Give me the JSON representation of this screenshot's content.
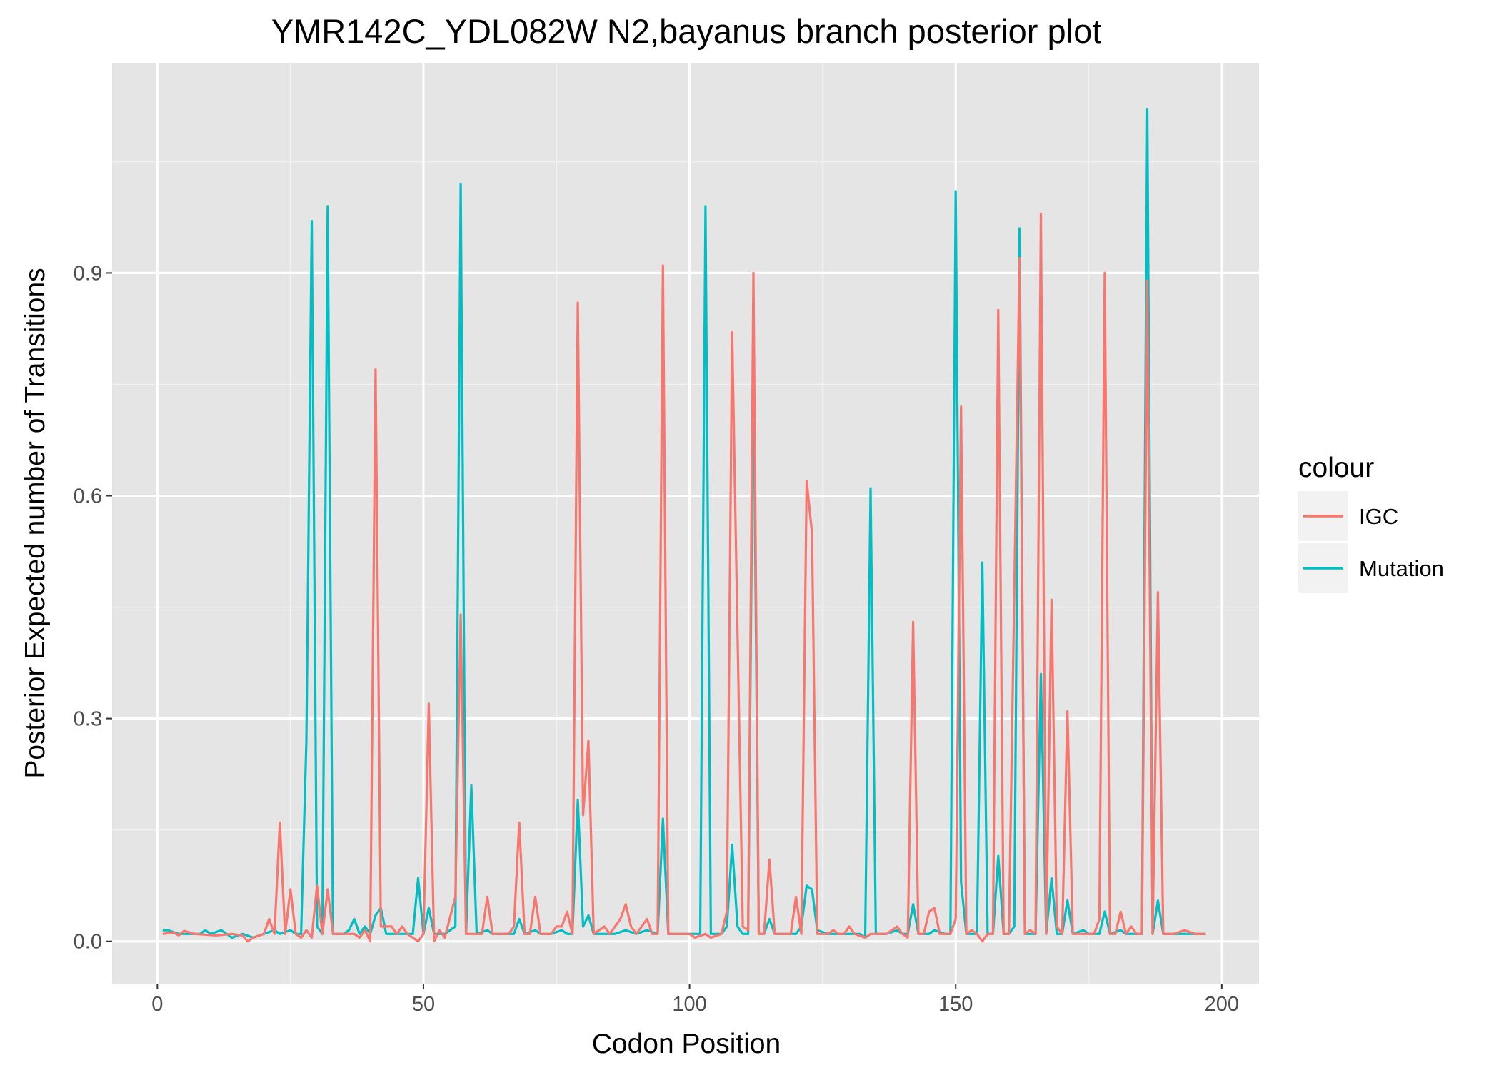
{
  "chart_data": {
    "type": "line",
    "title": "YMR142C_YDL082W N2,bayanus branch posterior plot",
    "xlabel": "Codon Position",
    "ylabel": "Posterior Expected number of Transitions",
    "xlim": [
      -8.5,
      207
    ],
    "ylim": [
      -0.057,
      1.183
    ],
    "x_ticks": [
      0,
      50,
      100,
      150,
      200
    ],
    "x_tick_labels": [
      "0",
      "50",
      "100",
      "150",
      "200"
    ],
    "y_ticks": [
      0.0,
      0.3,
      0.6,
      0.9
    ],
    "y_tick_labels": [
      "0.0",
      "0.3",
      "0.6",
      "0.9"
    ],
    "grid": true,
    "panel_background": "#e5e5e5",
    "legend": {
      "title": "colour",
      "placement": "right"
    },
    "series": [
      {
        "name": "IGC",
        "color": "#f8766d",
        "points": [
          [
            1,
            0.01
          ],
          [
            3,
            0.012
          ],
          [
            4,
            0.008
          ],
          [
            5,
            0.014
          ],
          [
            7,
            0.01
          ],
          [
            9,
            0.009
          ],
          [
            11,
            0.008
          ],
          [
            14,
            0.01
          ],
          [
            16,
            0.008
          ],
          [
            17,
            0.0
          ],
          [
            18,
            0.005
          ],
          [
            20,
            0.01
          ],
          [
            21,
            0.03
          ],
          [
            22,
            0.01
          ],
          [
            23,
            0.16
          ],
          [
            24,
            0.01
          ],
          [
            25,
            0.07
          ],
          [
            26,
            0.01
          ],
          [
            27,
            0.005
          ],
          [
            28,
            0.015
          ],
          [
            29,
            0.005
          ],
          [
            30,
            0.075
          ],
          [
            31,
            0.01
          ],
          [
            32,
            0.07
          ],
          [
            33,
            0.01
          ],
          [
            35,
            0.01
          ],
          [
            37,
            0.01
          ],
          [
            38,
            0.005
          ],
          [
            39,
            0.015
          ],
          [
            40,
            0.0
          ],
          [
            41,
            0.77
          ],
          [
            42,
            0.02
          ],
          [
            43,
            0.02
          ],
          [
            44,
            0.02
          ],
          [
            45,
            0.01
          ],
          [
            46,
            0.02
          ],
          [
            47,
            0.01
          ],
          [
            49,
            0.0
          ],
          [
            50,
            0.01
          ],
          [
            51,
            0.32
          ],
          [
            52,
            0.0
          ],
          [
            53,
            0.015
          ],
          [
            54,
            0.005
          ],
          [
            56,
            0.06
          ],
          [
            57,
            0.44
          ],
          [
            58,
            0.01
          ],
          [
            60,
            0.01
          ],
          [
            61,
            0.01
          ],
          [
            62,
            0.06
          ],
          [
            63,
            0.01
          ],
          [
            66,
            0.01
          ],
          [
            67,
            0.02
          ],
          [
            68,
            0.16
          ],
          [
            69,
            0.01
          ],
          [
            70,
            0.01
          ],
          [
            71,
            0.06
          ],
          [
            72,
            0.01
          ],
          [
            74,
            0.01
          ],
          [
            75,
            0.02
          ],
          [
            76,
            0.02
          ],
          [
            77,
            0.04
          ],
          [
            78,
            0.01
          ],
          [
            79,
            0.86
          ],
          [
            80,
            0.17
          ],
          [
            81,
            0.27
          ],
          [
            82,
            0.01
          ],
          [
            84,
            0.02
          ],
          [
            85,
            0.01
          ],
          [
            87,
            0.03
          ],
          [
            88,
            0.05
          ],
          [
            89,
            0.02
          ],
          [
            90,
            0.01
          ],
          [
            92,
            0.03
          ],
          [
            93,
            0.01
          ],
          [
            94,
            0.01
          ],
          [
            95,
            0.91
          ],
          [
            96,
            0.01
          ],
          [
            98,
            0.01
          ],
          [
            100,
            0.01
          ],
          [
            101,
            0.005
          ],
          [
            103,
            0.01
          ],
          [
            104,
            0.005
          ],
          [
            106,
            0.01
          ],
          [
            107,
            0.04
          ],
          [
            108,
            0.82
          ],
          [
            110,
            0.02
          ],
          [
            111,
            0.015
          ],
          [
            112,
            0.9
          ],
          [
            113,
            0.01
          ],
          [
            114,
            0.01
          ],
          [
            115,
            0.11
          ],
          [
            116,
            0.01
          ],
          [
            118,
            0.01
          ],
          [
            119,
            0.01
          ],
          [
            120,
            0.06
          ],
          [
            121,
            0.01
          ],
          [
            122,
            0.62
          ],
          [
            123,
            0.55
          ],
          [
            124,
            0.01
          ],
          [
            126,
            0.01
          ],
          [
            127,
            0.015
          ],
          [
            128,
            0.01
          ],
          [
            129,
            0.01
          ],
          [
            130,
            0.02
          ],
          [
            131,
            0.01
          ],
          [
            133,
            0.005
          ],
          [
            134,
            0.01
          ],
          [
            137,
            0.01
          ],
          [
            139,
            0.02
          ],
          [
            140,
            0.01
          ],
          [
            141,
            0.005
          ],
          [
            142,
            0.43
          ],
          [
            143,
            0.01
          ],
          [
            144,
            0.01
          ],
          [
            145,
            0.04
          ],
          [
            146,
            0.045
          ],
          [
            147,
            0.01
          ],
          [
            149,
            0.01
          ],
          [
            150,
            0.03
          ],
          [
            151,
            0.72
          ],
          [
            152,
            0.01
          ],
          [
            153,
            0.015
          ],
          [
            154,
            0.01
          ],
          [
            155,
            0.0
          ],
          [
            156,
            0.01
          ],
          [
            157,
            0.01
          ],
          [
            158,
            0.85
          ],
          [
            159,
            0.01
          ],
          [
            160,
            0.01
          ],
          [
            162,
            0.92
          ],
          [
            163,
            0.01
          ],
          [
            164,
            0.015
          ],
          [
            165,
            0.01
          ],
          [
            166,
            0.98
          ],
          [
            167,
            0.01
          ],
          [
            168,
            0.46
          ],
          [
            169,
            0.02
          ],
          [
            170,
            0.01
          ],
          [
            171,
            0.31
          ],
          [
            172,
            0.01
          ],
          [
            174,
            0.01
          ],
          [
            176,
            0.01
          ],
          [
            177,
            0.03
          ],
          [
            178,
            0.9
          ],
          [
            179,
            0.01
          ],
          [
            180,
            0.01
          ],
          [
            181,
            0.04
          ],
          [
            182,
            0.01
          ],
          [
            183,
            0.02
          ],
          [
            184,
            0.01
          ],
          [
            185,
            0.01
          ],
          [
            186,
            0.89
          ],
          [
            187,
            0.01
          ],
          [
            188,
            0.47
          ],
          [
            189,
            0.01
          ],
          [
            191,
            0.01
          ],
          [
            193,
            0.015
          ],
          [
            195,
            0.01
          ],
          [
            197,
            0.01
          ]
        ]
      },
      {
        "name": "Mutation",
        "color": "#00bfc4",
        "points": [
          [
            1,
            0.015
          ],
          [
            2,
            0.015
          ],
          [
            4,
            0.01
          ],
          [
            6,
            0.01
          ],
          [
            8,
            0.01
          ],
          [
            9,
            0.015
          ],
          [
            10,
            0.01
          ],
          [
            12,
            0.015
          ],
          [
            14,
            0.005
          ],
          [
            16,
            0.01
          ],
          [
            18,
            0.005
          ],
          [
            20,
            0.01
          ],
          [
            22,
            0.015
          ],
          [
            23,
            0.01
          ],
          [
            25,
            0.015
          ],
          [
            26,
            0.01
          ],
          [
            27,
            0.01
          ],
          [
            28,
            0.27
          ],
          [
            29,
            0.97
          ],
          [
            30,
            0.02
          ],
          [
            31,
            0.01
          ],
          [
            32,
            0.99
          ],
          [
            33,
            0.01
          ],
          [
            34,
            0.01
          ],
          [
            35,
            0.01
          ],
          [
            36,
            0.015
          ],
          [
            37,
            0.03
          ],
          [
            38,
            0.01
          ],
          [
            39,
            0.02
          ],
          [
            40,
            0.01
          ],
          [
            41,
            0.035
          ],
          [
            42,
            0.045
          ],
          [
            43,
            0.01
          ],
          [
            45,
            0.01
          ],
          [
            47,
            0.01
          ],
          [
            48,
            0.01
          ],
          [
            49,
            0.085
          ],
          [
            50,
            0.01
          ],
          [
            51,
            0.045
          ],
          [
            52,
            0.01
          ],
          [
            54,
            0.01
          ],
          [
            56,
            0.02
          ],
          [
            57,
            1.02
          ],
          [
            58,
            0.01
          ],
          [
            59,
            0.21
          ],
          [
            60,
            0.01
          ],
          [
            62,
            0.015
          ],
          [
            63,
            0.01
          ],
          [
            65,
            0.01
          ],
          [
            67,
            0.01
          ],
          [
            68,
            0.03
          ],
          [
            69,
            0.01
          ],
          [
            71,
            0.015
          ],
          [
            72,
            0.01
          ],
          [
            74,
            0.01
          ],
          [
            76,
            0.015
          ],
          [
            77,
            0.01
          ],
          [
            78,
            0.01
          ],
          [
            79,
            0.19
          ],
          [
            80,
            0.02
          ],
          [
            81,
            0.035
          ],
          [
            82,
            0.01
          ],
          [
            84,
            0.01
          ],
          [
            86,
            0.01
          ],
          [
            88,
            0.015
          ],
          [
            90,
            0.01
          ],
          [
            92,
            0.015
          ],
          [
            94,
            0.01
          ],
          [
            95,
            0.165
          ],
          [
            96,
            0.01
          ],
          [
            98,
            0.01
          ],
          [
            100,
            0.01
          ],
          [
            102,
            0.01
          ],
          [
            103,
            0.99
          ],
          [
            104,
            0.01
          ],
          [
            106,
            0.01
          ],
          [
            107,
            0.02
          ],
          [
            108,
            0.13
          ],
          [
            109,
            0.02
          ],
          [
            110,
            0.01
          ],
          [
            111,
            0.01
          ],
          [
            112,
            0.79
          ],
          [
            113,
            0.01
          ],
          [
            114,
            0.01
          ],
          [
            115,
            0.03
          ],
          [
            116,
            0.01
          ],
          [
            118,
            0.01
          ],
          [
            120,
            0.01
          ],
          [
            121,
            0.02
          ],
          [
            122,
            0.075
          ],
          [
            123,
            0.07
          ],
          [
            124,
            0.015
          ],
          [
            126,
            0.01
          ],
          [
            128,
            0.01
          ],
          [
            130,
            0.01
          ],
          [
            132,
            0.01
          ],
          [
            133,
            0.005
          ],
          [
            134,
            0.61
          ],
          [
            135,
            0.01
          ],
          [
            137,
            0.01
          ],
          [
            139,
            0.015
          ],
          [
            140,
            0.01
          ],
          [
            141,
            0.01
          ],
          [
            142,
            0.05
          ],
          [
            143,
            0.01
          ],
          [
            145,
            0.01
          ],
          [
            146,
            0.015
          ],
          [
            148,
            0.01
          ],
          [
            149,
            0.01
          ],
          [
            150,
            1.01
          ],
          [
            151,
            0.08
          ],
          [
            152,
            0.01
          ],
          [
            153,
            0.01
          ],
          [
            154,
            0.01
          ],
          [
            155,
            0.51
          ],
          [
            156,
            0.01
          ],
          [
            157,
            0.01
          ],
          [
            158,
            0.115
          ],
          [
            159,
            0.01
          ],
          [
            160,
            0.01
          ],
          [
            161,
            0.02
          ],
          [
            162,
            0.96
          ],
          [
            163,
            0.01
          ],
          [
            164,
            0.01
          ],
          [
            165,
            0.01
          ],
          [
            166,
            0.36
          ],
          [
            167,
            0.01
          ],
          [
            168,
            0.085
          ],
          [
            169,
            0.01
          ],
          [
            170,
            0.01
          ],
          [
            171,
            0.055
          ],
          [
            172,
            0.01
          ],
          [
            174,
            0.015
          ],
          [
            175,
            0.01
          ],
          [
            177,
            0.01
          ],
          [
            178,
            0.04
          ],
          [
            179,
            0.01
          ],
          [
            181,
            0.015
          ],
          [
            182,
            0.01
          ],
          [
            184,
            0.01
          ],
          [
            185,
            0.01
          ],
          [
            186,
            1.12
          ],
          [
            187,
            0.01
          ],
          [
            188,
            0.055
          ],
          [
            189,
            0.01
          ],
          [
            191,
            0.01
          ],
          [
            193,
            0.01
          ],
          [
            195,
            0.01
          ],
          [
            197,
            0.01
          ]
        ]
      }
    ]
  }
}
